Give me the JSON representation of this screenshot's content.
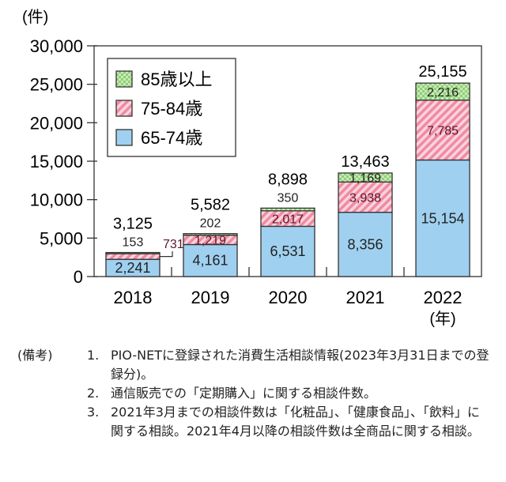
{
  "chart_data": {
    "type": "bar",
    "stacked": true,
    "ylabel": "(件)",
    "xlabel": "(年)",
    "ylim": [
      0,
      30000
    ],
    "yticks": [
      0,
      5000,
      10000,
      15000,
      20000,
      25000,
      30000
    ],
    "ytick_labels": [
      "0",
      "5,000",
      "10,000",
      "15,000",
      "20,000",
      "25,000",
      "30,000"
    ],
    "categories": [
      "2018",
      "2019",
      "2020",
      "2021",
      "2022"
    ],
    "series": [
      {
        "name": "65-74歳",
        "values": [
          2241,
          4161,
          6531,
          8356,
          15154
        ],
        "labels": [
          "2,241",
          "4,161",
          "6,531",
          "8,356",
          "15,154"
        ],
        "color": "#9fd0f0"
      },
      {
        "name": "75-84歳",
        "values": [
          731,
          1219,
          2017,
          3938,
          7785
        ],
        "labels": [
          "731",
          "1,219",
          "2,017",
          "3,938",
          "7,785"
        ],
        "color": "#f08aa0"
      },
      {
        "name": "85歳以上",
        "values": [
          153,
          202,
          350,
          1169,
          2216
        ],
        "labels": [
          "153",
          "202",
          "350",
          "1,169",
          "2,216"
        ],
        "color": "#9fd48a"
      }
    ],
    "totals": [
      "3,125",
      "5,582",
      "8,898",
      "13,463",
      "25,155"
    ],
    "legend_order": [
      2,
      1,
      0
    ],
    "legend_position": "top-left",
    "grid": false
  },
  "notes": {
    "label": "(備考)",
    "items": [
      {
        "num": "1.",
        "text": "PIO-NETに登録された消費生活相談情報(2023年3月31日までの登録分)。"
      },
      {
        "num": "2.",
        "text": "通信販売での「定期購入」に関する相談件数。"
      },
      {
        "num": "3.",
        "text": "2021年3月までの相談件数は「化粧品」、「健康食品」、「飲料」に関する相談。2021年4月以降の相談件数は全商品に関する相談。"
      }
    ]
  }
}
